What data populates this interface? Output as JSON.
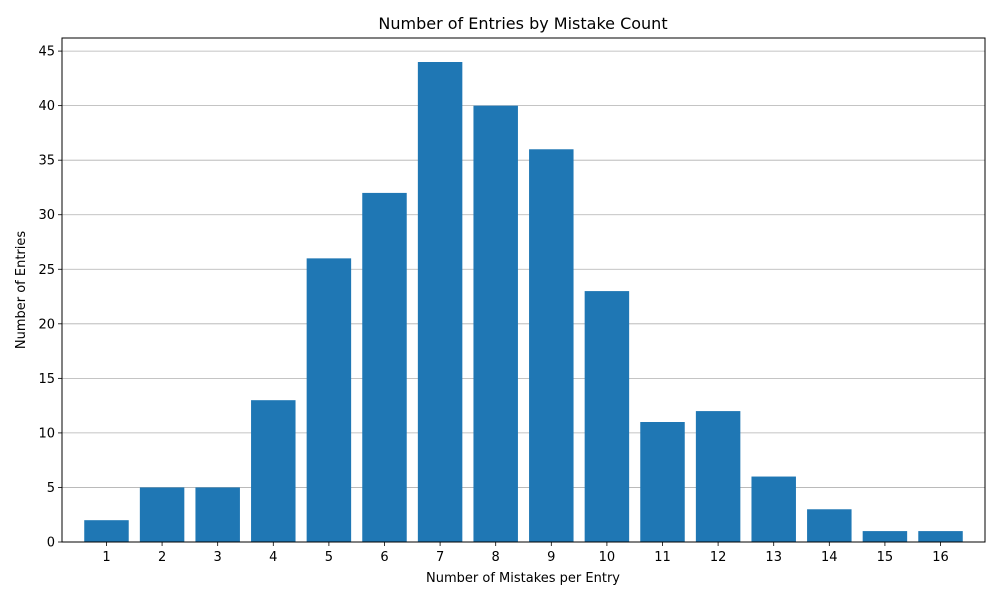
{
  "chart_data": {
    "type": "bar",
    "title": "Number of Entries by Mistake Count",
    "xlabel": "Number of Mistakes per Entry",
    "ylabel": "Number of Entries",
    "categories": [
      "1",
      "2",
      "3",
      "4",
      "5",
      "6",
      "7",
      "8",
      "9",
      "10",
      "11",
      "12",
      "13",
      "14",
      "15",
      "16"
    ],
    "values": [
      2,
      5,
      5,
      13,
      26,
      32,
      44,
      40,
      36,
      23,
      11,
      12,
      6,
      3,
      1,
      1
    ],
    "ylim": [
      0,
      46.2
    ],
    "yticks": [
      0,
      5,
      10,
      15,
      20,
      25,
      30,
      35,
      40,
      45
    ],
    "grid": "y",
    "bar_color": "#1f77b4",
    "grid_color": "#b0b0b0"
  }
}
